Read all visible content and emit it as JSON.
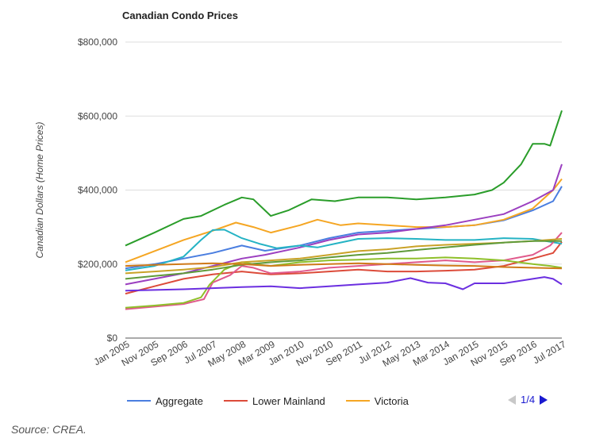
{
  "chart_data": {
    "type": "line",
    "title": "Canadian Condo Prices",
    "ylabel": "Canadian Dollars (Home Prices)",
    "xlabel": "",
    "ylim": [
      0,
      800000
    ],
    "yticks": [
      "$0",
      "$200,000",
      "$400,000",
      "$600,000",
      "$800,000"
    ],
    "xticks": [
      "Jan 2005",
      "Nov 2005",
      "Sep 2006",
      "Jul 2007",
      "May 2008",
      "Mar 2009",
      "Jan 2010",
      "Nov 2010",
      "Sep 2011",
      "Jul 2012",
      "May 2013",
      "Mar 2014",
      "Jan 2015",
      "Nov 2015",
      "Sep 2016",
      "Jul 2017"
    ],
    "x_months": [
      0,
      10,
      20,
      30,
      40,
      50,
      60,
      70,
      80,
      90,
      100,
      110,
      120,
      130,
      140,
      150
    ],
    "grid": true,
    "series": [
      {
        "name": "Aggregate",
        "color": "#4a7ee0",
        "points": [
          [
            0,
            188000
          ],
          [
            10,
            200000
          ],
          [
            20,
            215000
          ],
          [
            30,
            230000
          ],
          [
            40,
            250000
          ],
          [
            48,
            236000
          ],
          [
            60,
            250000
          ],
          [
            70,
            270000
          ],
          [
            80,
            285000
          ],
          [
            90,
            290000
          ],
          [
            100,
            295000
          ],
          [
            110,
            300000
          ],
          [
            120,
            305000
          ],
          [
            130,
            318000
          ],
          [
            140,
            345000
          ],
          [
            147,
            370000
          ],
          [
            150,
            410000
          ]
        ]
      },
      {
        "name": "Lower Mainland",
        "color": "#dc4b3a",
        "points": [
          [
            0,
            120000
          ],
          [
            10,
            140000
          ],
          [
            20,
            160000
          ],
          [
            30,
            172000
          ],
          [
            40,
            180000
          ],
          [
            50,
            172000
          ],
          [
            60,
            175000
          ],
          [
            70,
            180000
          ],
          [
            80,
            185000
          ],
          [
            90,
            180000
          ],
          [
            100,
            180000
          ],
          [
            110,
            182000
          ],
          [
            120,
            185000
          ],
          [
            130,
            195000
          ],
          [
            140,
            215000
          ],
          [
            147,
            230000
          ],
          [
            150,
            260000
          ]
        ]
      },
      {
        "name": "Victoria",
        "color": "#f5a623",
        "points": [
          [
            0,
            205000
          ],
          [
            10,
            235000
          ],
          [
            20,
            265000
          ],
          [
            30,
            290000
          ],
          [
            38,
            312000
          ],
          [
            44,
            300000
          ],
          [
            50,
            285000
          ],
          [
            60,
            305000
          ],
          [
            66,
            320000
          ],
          [
            74,
            305000
          ],
          [
            80,
            310000
          ],
          [
            90,
            305000
          ],
          [
            100,
            300000
          ],
          [
            110,
            300000
          ],
          [
            120,
            305000
          ],
          [
            130,
            320000
          ],
          [
            140,
            350000
          ],
          [
            147,
            400000
          ],
          [
            150,
            430000
          ]
        ]
      },
      {
        "name": "",
        "color": "#2a9d2a",
        "points": [
          [
            0,
            250000
          ],
          [
            10,
            285000
          ],
          [
            20,
            322000
          ],
          [
            26,
            330000
          ],
          [
            34,
            360000
          ],
          [
            40,
            380000
          ],
          [
            44,
            375000
          ],
          [
            50,
            330000
          ],
          [
            56,
            345000
          ],
          [
            64,
            375000
          ],
          [
            72,
            370000
          ],
          [
            80,
            380000
          ],
          [
            90,
            380000
          ],
          [
            100,
            375000
          ],
          [
            110,
            380000
          ],
          [
            120,
            388000
          ],
          [
            126,
            400000
          ],
          [
            130,
            420000
          ],
          [
            136,
            470000
          ],
          [
            140,
            525000
          ],
          [
            144,
            525000
          ],
          [
            146,
            520000
          ],
          [
            150,
            615000
          ]
        ]
      },
      {
        "name": "",
        "color": "#9b3fc0",
        "points": [
          [
            0,
            145000
          ],
          [
            10,
            160000
          ],
          [
            20,
            175000
          ],
          [
            30,
            195000
          ],
          [
            40,
            215000
          ],
          [
            48,
            225000
          ],
          [
            60,
            245000
          ],
          [
            70,
            265000
          ],
          [
            80,
            280000
          ],
          [
            90,
            285000
          ],
          [
            100,
            295000
          ],
          [
            110,
            305000
          ],
          [
            120,
            320000
          ],
          [
            130,
            335000
          ],
          [
            140,
            370000
          ],
          [
            147,
            400000
          ],
          [
            150,
            470000
          ]
        ]
      },
      {
        "name": "",
        "color": "#25b3c4",
        "points": [
          [
            0,
            183000
          ],
          [
            10,
            195000
          ],
          [
            20,
            220000
          ],
          [
            26,
            265000
          ],
          [
            30,
            292000
          ],
          [
            34,
            293000
          ],
          [
            40,
            270000
          ],
          [
            46,
            255000
          ],
          [
            52,
            243000
          ],
          [
            60,
            250000
          ],
          [
            66,
            245000
          ],
          [
            72,
            255000
          ],
          [
            80,
            268000
          ],
          [
            90,
            270000
          ],
          [
            100,
            268000
          ],
          [
            110,
            265000
          ],
          [
            120,
            265000
          ],
          [
            130,
            270000
          ],
          [
            140,
            268000
          ],
          [
            150,
            255000
          ]
        ]
      },
      {
        "name": "",
        "color": "#e05a8c",
        "points": [
          [
            0,
            78000
          ],
          [
            10,
            85000
          ],
          [
            20,
            92000
          ],
          [
            27,
            105000
          ],
          [
            30,
            150000
          ],
          [
            36,
            170000
          ],
          [
            40,
            195000
          ],
          [
            44,
            190000
          ],
          [
            50,
            175000
          ],
          [
            60,
            180000
          ],
          [
            70,
            190000
          ],
          [
            80,
            195000
          ],
          [
            90,
            200000
          ],
          [
            100,
            205000
          ],
          [
            110,
            210000
          ],
          [
            120,
            205000
          ],
          [
            130,
            210000
          ],
          [
            140,
            225000
          ],
          [
            146,
            250000
          ],
          [
            150,
            285000
          ]
        ]
      },
      {
        "name": "",
        "color": "#8fbf2a",
        "points": [
          [
            0,
            82000
          ],
          [
            10,
            88000
          ],
          [
            20,
            95000
          ],
          [
            26,
            110000
          ],
          [
            29,
            145000
          ],
          [
            34,
            185000
          ],
          [
            40,
            205000
          ],
          [
            44,
            200000
          ],
          [
            50,
            195000
          ],
          [
            60,
            205000
          ],
          [
            70,
            210000
          ],
          [
            80,
            212000
          ],
          [
            90,
            215000
          ],
          [
            100,
            215000
          ],
          [
            110,
            218000
          ],
          [
            120,
            215000
          ],
          [
            130,
            210000
          ],
          [
            140,
            200000
          ],
          [
            146,
            195000
          ],
          [
            150,
            190000
          ]
        ]
      },
      {
        "name": "",
        "color": "#6b2fe0",
        "points": [
          [
            0,
            128000
          ],
          [
            10,
            130000
          ],
          [
            20,
            132000
          ],
          [
            30,
            135000
          ],
          [
            40,
            138000
          ],
          [
            50,
            140000
          ],
          [
            60,
            135000
          ],
          [
            70,
            140000
          ],
          [
            80,
            145000
          ],
          [
            90,
            150000
          ],
          [
            98,
            162000
          ],
          [
            104,
            150000
          ],
          [
            110,
            148000
          ],
          [
            116,
            132000
          ],
          [
            120,
            148000
          ],
          [
            130,
            148000
          ],
          [
            140,
            160000
          ],
          [
            144,
            165000
          ],
          [
            147,
            160000
          ],
          [
            150,
            145000
          ]
        ]
      },
      {
        "name": "",
        "color": "#c9a227",
        "points": [
          [
            0,
            175000
          ],
          [
            10,
            180000
          ],
          [
            20,
            185000
          ],
          [
            30,
            192000
          ],
          [
            40,
            205000
          ],
          [
            50,
            210000
          ],
          [
            60,
            215000
          ],
          [
            70,
            225000
          ],
          [
            80,
            235000
          ],
          [
            90,
            240000
          ],
          [
            100,
            248000
          ],
          [
            110,
            252000
          ],
          [
            120,
            255000
          ],
          [
            130,
            258000
          ],
          [
            140,
            262000
          ],
          [
            150,
            268000
          ]
        ]
      },
      {
        "name": "",
        "color": "#5f9a3a",
        "points": [
          [
            0,
            160000
          ],
          [
            10,
            168000
          ],
          [
            20,
            175000
          ],
          [
            30,
            185000
          ],
          [
            40,
            198000
          ],
          [
            50,
            205000
          ],
          [
            60,
            210000
          ],
          [
            70,
            218000
          ],
          [
            80,
            225000
          ],
          [
            90,
            230000
          ],
          [
            100,
            238000
          ],
          [
            110,
            245000
          ],
          [
            120,
            252000
          ],
          [
            130,
            258000
          ],
          [
            140,
            262000
          ],
          [
            150,
            262000
          ]
        ]
      },
      {
        "name": "",
        "color": "#d07a1a",
        "points": [
          [
            0,
            195000
          ],
          [
            10,
            198000
          ],
          [
            20,
            200000
          ],
          [
            30,
            202000
          ],
          [
            40,
            200000
          ],
          [
            50,
            195000
          ],
          [
            60,
            198000
          ],
          [
            70,
            200000
          ],
          [
            80,
            202000
          ],
          [
            90,
            200000
          ],
          [
            100,
            198000
          ],
          [
            110,
            196000
          ],
          [
            120,
            195000
          ],
          [
            130,
            192000
          ],
          [
            140,
            190000
          ],
          [
            150,
            188000
          ]
        ]
      }
    ],
    "legend_position": "bottom"
  },
  "legend": {
    "items": [
      {
        "label": "Aggregate",
        "color": "#4a7ee0"
      },
      {
        "label": "Lower Mainland",
        "color": "#dc4b3a"
      },
      {
        "label": "Victoria",
        "color": "#f5a623"
      }
    ],
    "page_label": "1/4"
  },
  "source": "Source: CREA."
}
